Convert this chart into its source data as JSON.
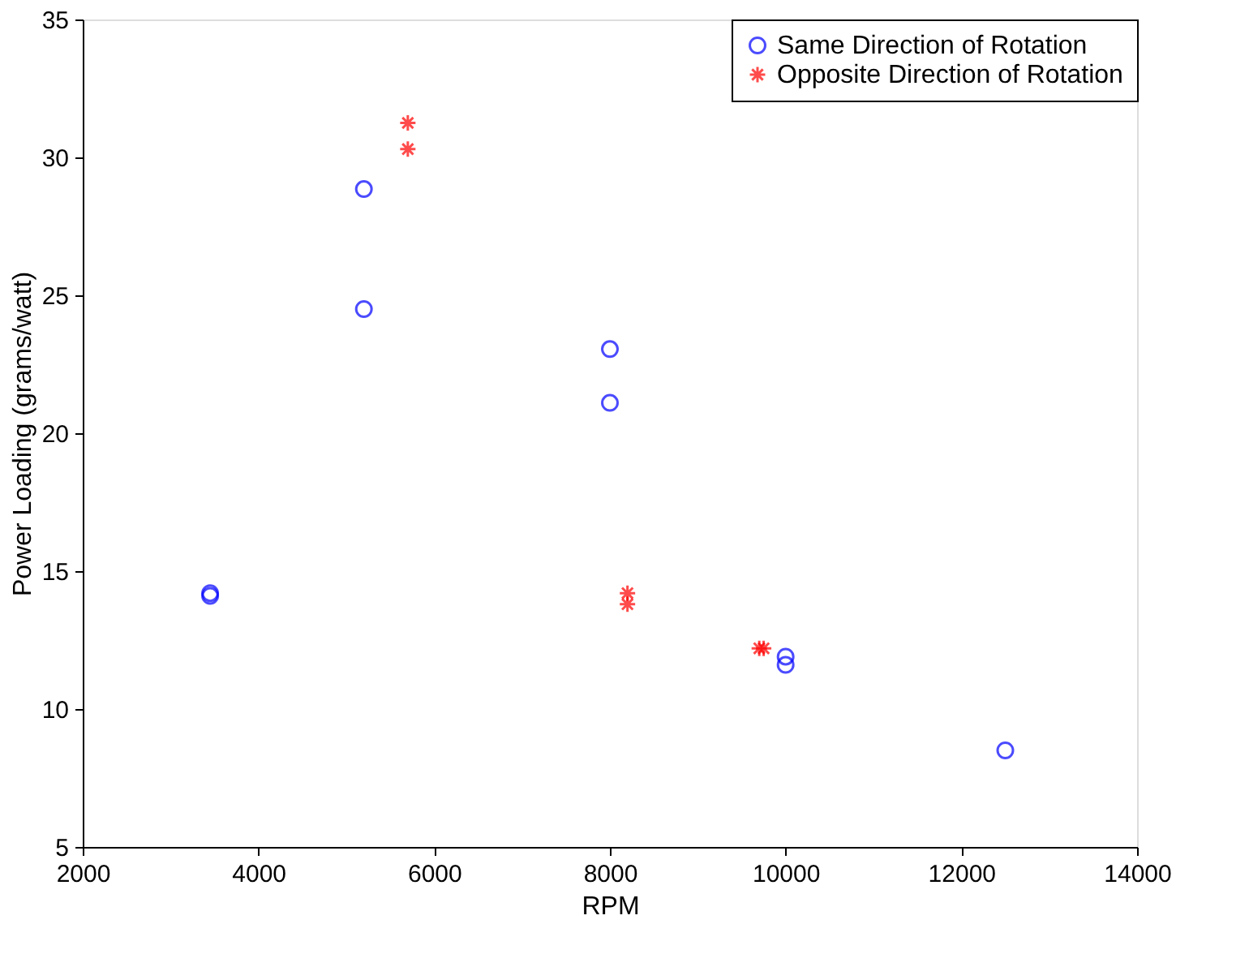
{
  "chart_data": {
    "type": "scatter",
    "xlabel": "RPM",
    "ylabel": "Power Loading (grams/watt)",
    "xlim": [
      2000,
      14000
    ],
    "xticks": [
      2000,
      4000,
      6000,
      8000,
      10000,
      12000,
      14000
    ],
    "ylim": [
      5,
      35
    ],
    "yticks": [
      5,
      10,
      15,
      20,
      25,
      30,
      35
    ],
    "grid": false,
    "legend": "top right",
    "series": [
      {
        "name": "Same Direction of Rotation",
        "color": "#0000ff",
        "marker": "circle",
        "x": [
          3450,
          3450,
          5200,
          5200,
          8000,
          8000,
          10000,
          10000,
          12500
        ],
        "values": [
          14.2,
          14.1,
          28.85,
          24.5,
          23.05,
          21.1,
          11.9,
          11.6,
          8.5
        ]
      },
      {
        "name": "Opposite Direction of Rotation",
        "color": "#ff0000",
        "marker": "cross",
        "x": [
          5700,
          5700,
          8200,
          8200,
          9700,
          9750
        ],
        "values": [
          31.25,
          30.3,
          14.2,
          13.8,
          12.2,
          12.2
        ]
      }
    ]
  }
}
